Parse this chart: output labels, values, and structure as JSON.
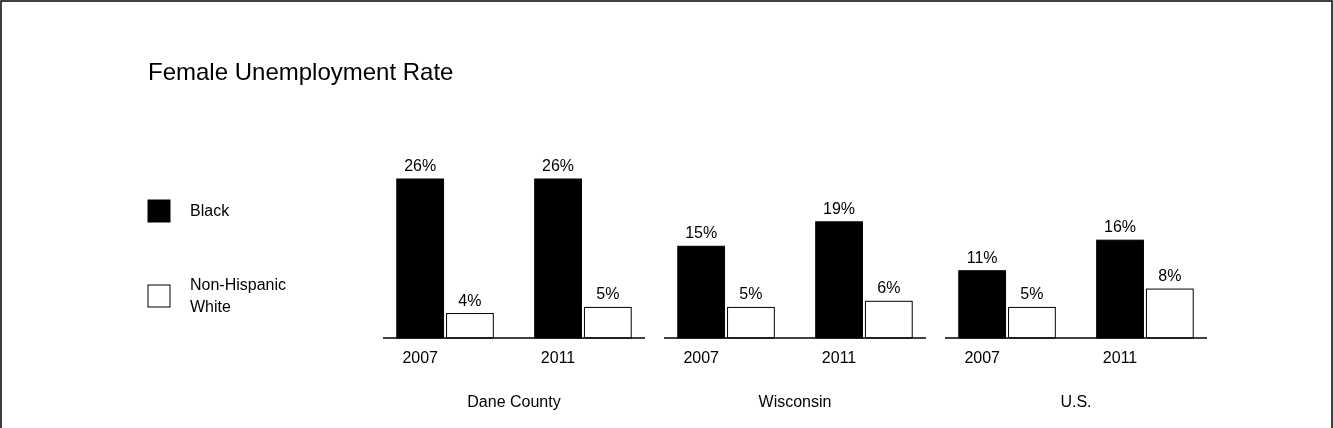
{
  "chart_data": [
    {
      "type": "bar",
      "title": "Female Unemployment Rate",
      "xlabel": "Dane County",
      "categories": [
        "2007",
        "2011"
      ],
      "legend": "left",
      "series": [
        {
          "name": "Black",
          "color": "#000000",
          "values": [
            26,
            26
          ],
          "value_labels": [
            "26%",
            "26%"
          ]
        },
        {
          "name": "Non-Hispanic White",
          "color": "#ffffff",
          "values": [
            4,
            5
          ],
          "value_labels": [
            "4%",
            "5%"
          ]
        }
      ]
    },
    {
      "type": "bar",
      "xlabel": "Wisconsin",
      "categories": [
        "2007",
        "2011"
      ],
      "series": [
        {
          "color": "#000000",
          "values": [
            15,
            19
          ],
          "value_labels": [
            "15%",
            "19%"
          ]
        },
        {
          "color": "#ffffff",
          "values": [
            5,
            6
          ],
          "value_labels": [
            "5%",
            "6%"
          ]
        }
      ]
    },
    {
      "type": "bar",
      "xlabel": "U.S.",
      "categories": [
        "2007",
        "2011"
      ],
      "series": [
        {
          "color": "#000000",
          "values": [
            11,
            16
          ],
          "value_labels": [
            "11%",
            "16%"
          ]
        },
        {
          "color": "#ffffff",
          "values": [
            5,
            8
          ],
          "value_labels": [
            "5%",
            "8%"
          ]
        }
      ]
    }
  ]
}
